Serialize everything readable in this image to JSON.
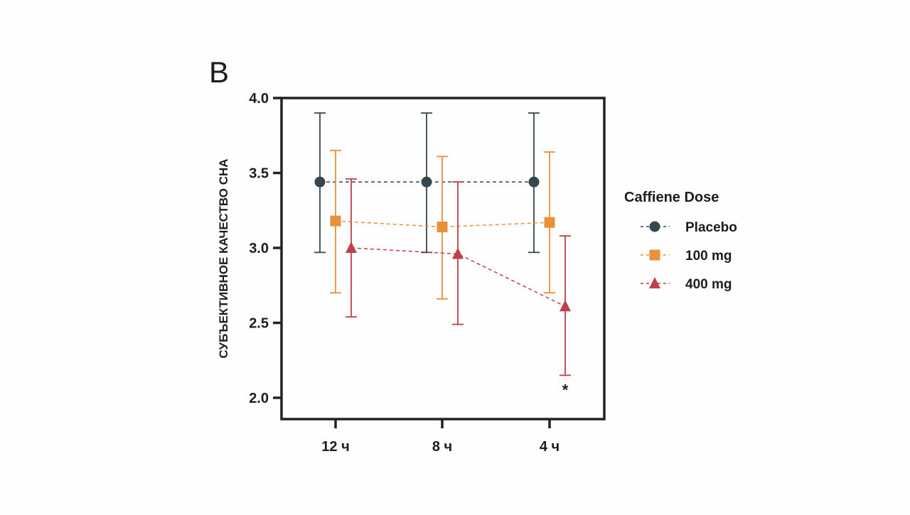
{
  "panel_label": "B",
  "chart_data": {
    "type": "line",
    "title": "",
    "xlabel": "",
    "ylabel": "СУБЪЕКТИВНОЕ КАЧЕСТВО СНА",
    "categories": [
      "12 ч",
      "8  ч",
      "4  ч"
    ],
    "ylim": [
      2.0,
      4.0
    ],
    "yticks": [
      "2.0",
      "2.5",
      "3.0",
      "3.5",
      "4.0"
    ],
    "grid": false,
    "legend": {
      "title": "Caffiene Dose",
      "placement": "right"
    },
    "series": [
      {
        "name": "Placebo",
        "marker": "circle",
        "color": "#37474f",
        "values": [
          3.44,
          3.44,
          3.44
        ],
        "err_low": [
          2.97,
          2.97,
          2.97
        ],
        "err_high": [
          3.9,
          3.9,
          3.9
        ]
      },
      {
        "name": "100 mg",
        "marker": "square",
        "color": "#e8913a",
        "values": [
          3.18,
          3.14,
          3.17
        ],
        "err_low": [
          2.7,
          2.66,
          2.7
        ],
        "err_high": [
          3.65,
          3.61,
          3.64
        ]
      },
      {
        "name": "400 mg",
        "marker": "triangle",
        "color": "#c0404a",
        "values": [
          3.0,
          2.96,
          2.61
        ],
        "err_low": [
          2.54,
          2.49,
          2.15
        ],
        "err_high": [
          3.46,
          3.44,
          3.08
        ]
      }
    ],
    "annotations": [
      {
        "text": "*",
        "category": "4  ч",
        "series": "400 mg"
      }
    ]
  }
}
